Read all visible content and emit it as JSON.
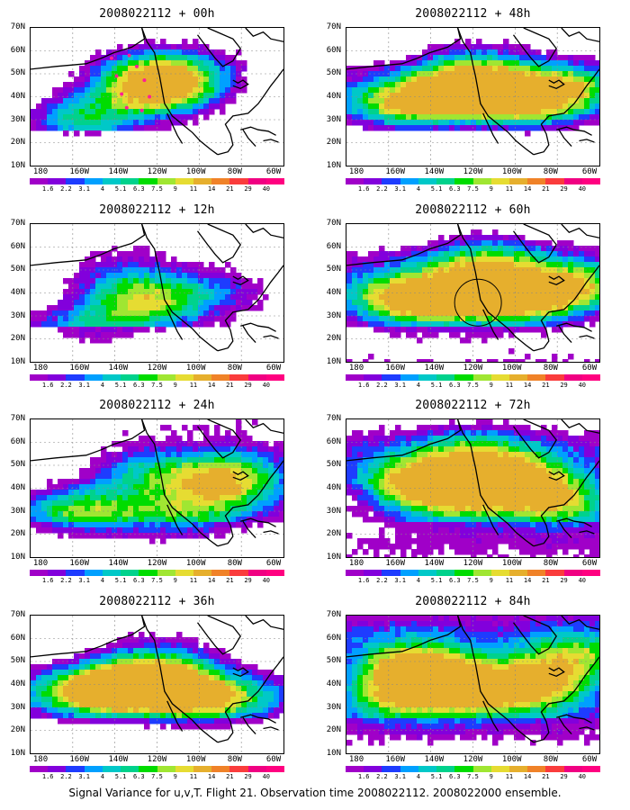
{
  "panels": [
    {
      "title": "2008022112 + 00h",
      "intensity": 0.15,
      "seeds": [
        [
          0.52,
          0.45,
          0.95
        ],
        [
          0.47,
          0.3,
          0.7
        ],
        [
          0.22,
          0.6,
          0.5
        ],
        [
          0.15,
          0.7,
          0.3
        ],
        [
          0.7,
          0.25,
          0.2
        ]
      ],
      "markers": "dots"
    },
    {
      "title": "2008022112 + 12h",
      "intensity": 0.35,
      "seeds": [
        [
          0.45,
          0.55,
          0.8
        ],
        [
          0.75,
          0.45,
          0.4
        ],
        [
          0.2,
          0.75,
          0.5
        ],
        [
          0.35,
          0.35,
          0.4
        ]
      ]
    },
    {
      "title": "2008022112 + 24h",
      "intensity": 0.55,
      "seeds": [
        [
          0.75,
          0.45,
          0.8
        ],
        [
          0.2,
          0.65,
          0.7
        ],
        [
          0.45,
          0.35,
          0.6
        ],
        [
          0.6,
          0.7,
          0.5
        ],
        [
          0.85,
          0.3,
          0.4
        ]
      ]
    },
    {
      "title": "2008022112 + 36h",
      "intensity": 0.65,
      "seeds": [
        [
          0.4,
          0.48,
          0.8
        ],
        [
          0.2,
          0.55,
          0.7
        ],
        [
          0.55,
          0.55,
          0.6
        ],
        [
          0.75,
          0.6,
          0.6
        ],
        [
          0.5,
          0.3,
          0.5
        ]
      ]
    },
    {
      "title": "2008022112 + 48h",
      "intensity": 0.75,
      "seeds": [
        [
          0.45,
          0.45,
          0.9
        ],
        [
          0.2,
          0.55,
          0.7
        ],
        [
          0.7,
          0.55,
          0.7
        ],
        [
          0.85,
          0.4,
          0.6
        ],
        [
          0.5,
          0.25,
          0.5
        ]
      ]
    },
    {
      "title": "2008022112 + 60h",
      "intensity": 0.85,
      "seeds": [
        [
          0.42,
          0.52,
          0.95
        ],
        [
          0.18,
          0.55,
          0.8
        ],
        [
          0.68,
          0.55,
          0.8
        ],
        [
          0.88,
          0.45,
          0.7
        ],
        [
          0.55,
          0.25,
          0.6
        ]
      ],
      "markers": "circle"
    },
    {
      "title": "2008022112 + 72h",
      "intensity": 0.9,
      "seeds": [
        [
          0.25,
          0.45,
          0.9
        ],
        [
          0.45,
          0.55,
          0.8
        ],
        [
          0.7,
          0.45,
          0.8
        ],
        [
          0.85,
          0.6,
          0.7
        ],
        [
          0.5,
          0.25,
          0.6
        ]
      ]
    },
    {
      "title": "2008022112 + 84h",
      "intensity": 0.95,
      "seeds": [
        [
          0.25,
          0.35,
          0.95
        ],
        [
          0.2,
          0.55,
          0.8
        ],
        [
          0.5,
          0.5,
          0.9
        ],
        [
          0.75,
          0.5,
          0.8
        ],
        [
          0.9,
          0.3,
          0.7
        ]
      ]
    }
  ],
  "lat_labels": [
    "70N",
    "60N",
    "50N",
    "40N",
    "30N",
    "20N",
    "10N"
  ],
  "lon_labels": [
    "180",
    "160W",
    "140W",
    "120W",
    "100W",
    "80W",
    "60W"
  ],
  "colorbar": {
    "labels": [
      "1.6",
      "2.2",
      "3.1",
      "4",
      "5.1",
      "6.3",
      "7.5",
      "9",
      "11",
      "14",
      "21",
      "29",
      "40"
    ],
    "colors": [
      "#a000c8",
      "#8200dc",
      "#1e3cff",
      "#00a0ff",
      "#00c8c8",
      "#00d28c",
      "#00dc00",
      "#a0e632",
      "#e6dc32",
      "#e6af2d",
      "#f08228",
      "#fa3c3c",
      "#f00082"
    ]
  },
  "caption": "Signal Variance for u,v,T. Flight 21. Observation time 2008022112. 2008022000 ensemble."
}
